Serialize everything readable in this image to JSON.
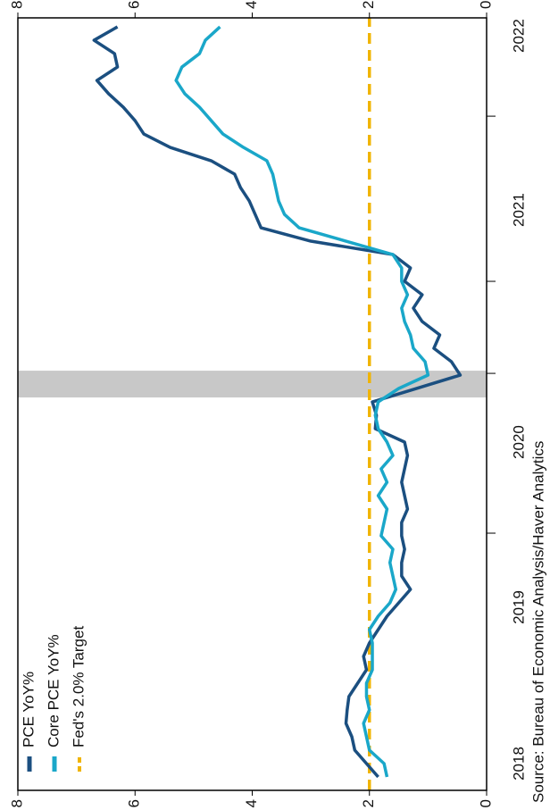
{
  "chart_data": {
    "type": "line",
    "x": [
      1,
      2,
      3,
      4,
      5,
      6,
      7,
      8,
      9,
      10,
      11,
      12,
      13,
      14,
      15,
      16,
      17,
      18,
      19,
      20,
      21,
      22,
      23,
      24,
      25,
      26,
      27,
      28,
      29,
      30,
      31,
      32,
      33,
      34,
      35,
      36,
      37,
      38,
      39,
      40,
      41,
      42,
      43,
      44,
      45,
      46,
      47,
      48,
      49,
      50,
      51,
      52,
      53,
      54,
      55,
      56,
      57
    ],
    "xlim": [
      0,
      57.67
    ],
    "xticks": [
      {
        "value": 2,
        "label": "2018"
      },
      {
        "value": 13.67,
        "label": "2019"
      },
      {
        "value": 26,
        "label": "2020"
      },
      {
        "value": 43.33,
        "label": "2021"
      },
      {
        "value": 56.33,
        "label": "2022"
      }
    ],
    "xminorticks": [
      19.2,
      31.13,
      38,
      50.33
    ],
    "ylim": [
      0,
      8
    ],
    "yticks": [
      0,
      2,
      4,
      6,
      8
    ],
    "shaded_region": {
      "x": [
        29.33,
        31.33
      ],
      "color": "#c8c8c8"
    },
    "target": {
      "name": "Fed's 2.0% Target",
      "value": 2,
      "color": "#f0b400"
    },
    "series": [
      {
        "name": "PCE YoY%",
        "color": "#1b4f80",
        "values": [
          1.85,
          2.05,
          2.25,
          2.3,
          2.4,
          2.38,
          2.35,
          2.2,
          2.05,
          2.1,
          2.0,
          1.85,
          1.7,
          1.5,
          1.3,
          1.45,
          1.45,
          1.4,
          1.45,
          1.45,
          1.35,
          1.4,
          1.45,
          1.4,
          1.35,
          1.4,
          1.9,
          1.88,
          1.95,
          1.2,
          0.45,
          0.6,
          0.9,
          0.8,
          1.1,
          1.25,
          1.1,
          1.4,
          1.3,
          1.6,
          3.0,
          3.85,
          3.95,
          4.05,
          4.2,
          4.3,
          4.7,
          5.4,
          5.85,
          6.0,
          6.2,
          6.45,
          6.65,
          6.3,
          6.35,
          6.7,
          6.3
        ]
      },
      {
        "name": "Core PCE YoY%",
        "color": "#1aa7c9",
        "values": [
          1.7,
          1.75,
          2.0,
          2.05,
          2.1,
          2.0,
          2.05,
          2.05,
          1.95,
          1.95,
          1.95,
          2.0,
          1.85,
          1.65,
          1.55,
          1.6,
          1.65,
          1.6,
          1.8,
          1.75,
          1.7,
          1.85,
          1.7,
          1.8,
          1.6,
          1.7,
          1.85,
          1.9,
          1.85,
          1.5,
          1.0,
          1.05,
          1.25,
          1.3,
          1.4,
          1.45,
          1.35,
          1.45,
          1.45,
          1.6,
          2.4,
          3.2,
          3.45,
          3.55,
          3.6,
          3.65,
          3.75,
          4.15,
          4.5,
          4.7,
          4.9,
          5.15,
          5.3,
          5.2,
          4.9,
          4.8,
          4.55
        ]
      }
    ],
    "source": "Source:  Bureau of Economic Analysis/Haver Analytics"
  }
}
